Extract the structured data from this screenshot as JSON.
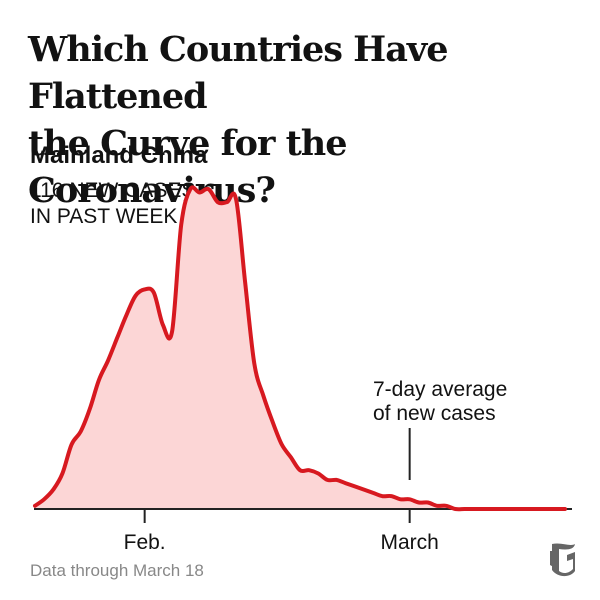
{
  "title_line1": "Which Countries Have Flattened",
  "title_line2": "the Curve for the Coronavirus?",
  "region": "Mainland China",
  "stat_line1": "116 NEW CASES",
  "stat_line2": "IN PAST WEEK",
  "annotation_line1": "7-day average",
  "annotation_line2": "of new cases",
  "footnote": "Data through March 18",
  "colors": {
    "line": "#d71920",
    "fill": "#fcd6d6",
    "axis": "#222222",
    "text": "#121212",
    "muted": "#888888"
  },
  "chart_data": {
    "type": "area",
    "title": "Mainland China",
    "series": [
      {
        "name": "7-day average of new cases",
        "x": [
          "2020-01-20",
          "2020-01-21",
          "2020-01-22",
          "2020-01-23",
          "2020-01-24",
          "2020-01-25",
          "2020-01-26",
          "2020-01-27",
          "2020-01-28",
          "2020-01-29",
          "2020-01-30",
          "2020-01-31",
          "2020-02-01",
          "2020-02-02",
          "2020-02-03",
          "2020-02-04",
          "2020-02-05",
          "2020-02-06",
          "2020-02-07",
          "2020-02-08",
          "2020-02-09",
          "2020-02-10",
          "2020-02-11",
          "2020-02-12",
          "2020-02-13",
          "2020-02-14",
          "2020-02-15",
          "2020-02-16",
          "2020-02-17",
          "2020-02-18",
          "2020-02-19",
          "2020-02-20",
          "2020-02-21",
          "2020-02-22",
          "2020-02-23",
          "2020-02-24",
          "2020-02-25",
          "2020-02-26",
          "2020-02-27",
          "2020-02-28",
          "2020-02-29",
          "2020-03-01",
          "2020-03-02",
          "2020-03-03",
          "2020-03-04",
          "2020-03-05",
          "2020-03-06",
          "2020-03-07",
          "2020-03-08",
          "2020-03-09",
          "2020-03-10",
          "2020-03-11",
          "2020-03-12",
          "2020-03-13",
          "2020-03-14",
          "2020-03-15",
          "2020-03-16",
          "2020-03-17",
          "2020-03-18"
        ],
        "values": [
          0.01,
          0.03,
          0.06,
          0.11,
          0.2,
          0.24,
          0.31,
          0.4,
          0.46,
          0.53,
          0.6,
          0.66,
          0.68,
          0.67,
          0.57,
          0.55,
          0.88,
          0.99,
          0.98,
          0.99,
          0.95,
          0.95,
          0.96,
          0.7,
          0.45,
          0.35,
          0.27,
          0.2,
          0.16,
          0.12,
          0.12,
          0.11,
          0.09,
          0.09,
          0.08,
          0.07,
          0.06,
          0.05,
          0.04,
          0.04,
          0.03,
          0.03,
          0.02,
          0.02,
          0.01,
          0.01,
          0.0,
          0.0,
          0.0,
          0.0,
          0.0,
          0.0,
          0.0,
          0.0,
          0.0,
          0.0,
          0.0,
          0.0,
          0.0
        ]
      }
    ],
    "x_ticks": [
      {
        "date": "2020-02-01",
        "label": "Feb."
      },
      {
        "date": "2020-03-01",
        "label": "March"
      }
    ],
    "annotation": {
      "date": "2020-03-01",
      "text": "7-day average of new cases"
    },
    "grid": false,
    "ylim": [
      0,
      1
    ]
  }
}
